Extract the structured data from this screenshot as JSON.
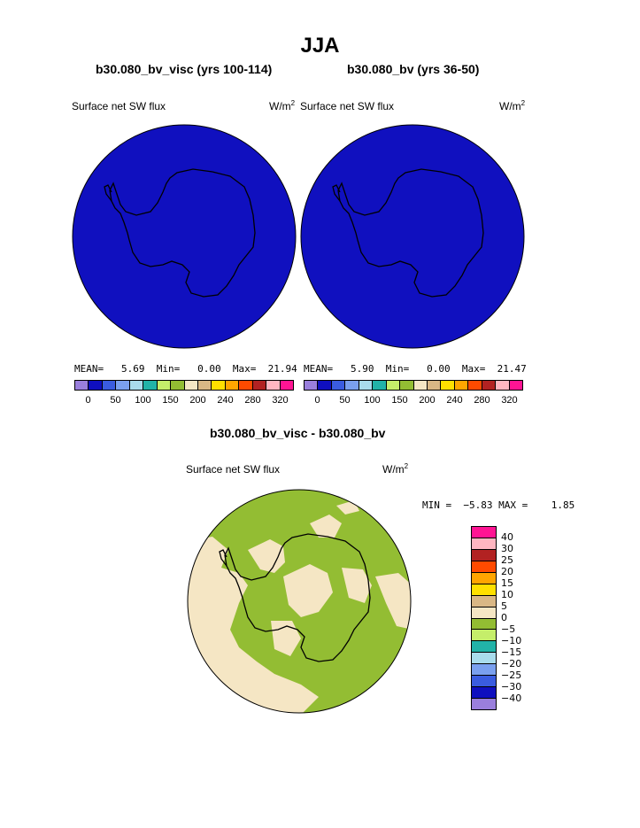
{
  "title": "JJA",
  "panels": [
    {
      "heading": "b30.080_bv_visc (yrs 100-114)",
      "variable": "Surface net SW flux",
      "units": "W/m",
      "units_sup": "2",
      "stats": {
        "mean_label": "MEAN=",
        "mean": "5.69",
        "min_label": "Min=",
        "min": "0.00",
        "max_label": "Max=",
        "max": "21.94"
      },
      "fill_color": "#1010bf"
    },
    {
      "heading": "b30.080_bv (yrs 36-50)",
      "variable": "Surface net SW flux",
      "units": "W/m",
      "units_sup": "2",
      "stats": {
        "mean_label": "MEAN=",
        "mean": "5.90",
        "min_label": "Min=",
        "min": "0.00",
        "max_label": "Max=",
        "max": "21.47"
      },
      "fill_color": "#1010bf"
    }
  ],
  "colorbar_top": {
    "colors": [
      "#9a7fdc",
      "#0f0fbf",
      "#3a5ce0",
      "#7aa0ef",
      "#a9dcec",
      "#22b3a8",
      "#c5ee6a",
      "#93bd33",
      "#f5e6c4",
      "#d9b785",
      "#ffe000",
      "#ffa500",
      "#ff4a00",
      "#b22222",
      "#ffb6c1",
      "#ff1493"
    ],
    "ticks": [
      "0",
      "50",
      "100",
      "150",
      "200",
      "240",
      "280",
      "320"
    ]
  },
  "diff": {
    "heading": "b30.080_bv_visc - b30.080_bv",
    "variable": "Surface net SW flux",
    "units": "W/m",
    "units_sup": "2",
    "min_label": "MIN =",
    "min": "−5.83",
    "max_label": "MAX =",
    "max": "1.85",
    "colors_top_to_bottom": [
      "#ff1493",
      "#ffb6c1",
      "#b22222",
      "#ff4a00",
      "#ffa500",
      "#ffe000",
      "#d9b785",
      "#f5e6c4",
      "#93bd33",
      "#c5ee6a",
      "#22b3a8",
      "#a9dcec",
      "#7aa0ef",
      "#3a5ce0",
      "#0f0fbf",
      "#9a7fdc"
    ],
    "labels": [
      "40",
      "30",
      "25",
      "20",
      "15",
      "10",
      "5",
      "0",
      "−5",
      "−10",
      "−15",
      "−20",
      "−25",
      "−30",
      "−40"
    ]
  },
  "colors": {
    "ocean": "#1010bf",
    "diff_positive": "#93bd33",
    "diff_negative": "#f5e6c4",
    "coast": "#000000"
  }
}
